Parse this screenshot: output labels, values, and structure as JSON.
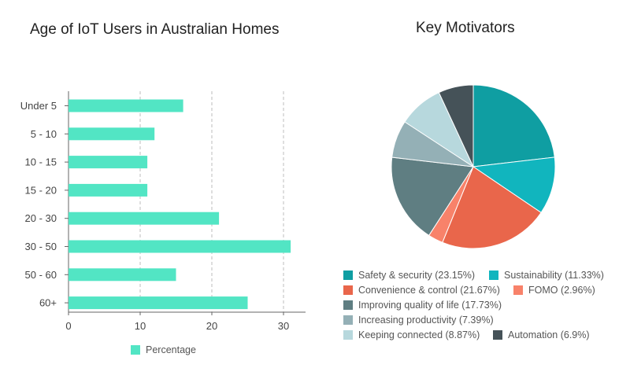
{
  "chart_data": [
    {
      "type": "bar",
      "orientation": "horizontal",
      "title": "Age of IoT Users in Australian Homes",
      "categories": [
        "Under 5",
        "5 - 10",
        "10 - 15",
        "15 - 20",
        "20 - 30",
        "30 - 50",
        "50 - 60",
        "60+"
      ],
      "series": [
        {
          "name": "Percentage",
          "values": [
            16,
            12,
            11,
            11,
            21,
            31,
            15,
            25
          ],
          "color": "#52e5c4"
        }
      ],
      "xlim": [
        0,
        33
      ],
      "xticks": [
        "0",
        "10",
        "20",
        "30"
      ],
      "xlabel": "",
      "ylabel": "",
      "grid": "vertical dashed",
      "legend": "bottom"
    },
    {
      "type": "pie",
      "title": "Key Motivators",
      "slices": [
        {
          "label": "Safety & security (23.15%)",
          "value": 23.15,
          "color": "#0f9ea2"
        },
        {
          "label": "Sustainability (11.33%)",
          "value": 11.33,
          "color": "#11b5be"
        },
        {
          "label": "Convenience & control (21.67%)",
          "value": 21.67,
          "color": "#e9664b"
        },
        {
          "label": "FOMO (2.96%)",
          "value": 2.96,
          "color": "#f8826a"
        },
        {
          "label": "Improving quality of life (17.73%)",
          "value": 17.73,
          "color": "#5f7e82"
        },
        {
          "label": "Increasing productivity (7.39%)",
          "value": 7.39,
          "color": "#94b0b6"
        },
        {
          "label": "Keeping connected (8.87%)",
          "value": 8.87,
          "color": "#b7d8dd"
        },
        {
          "label": "Automation (6.9%)",
          "value": 6.9,
          "color": "#455258"
        }
      ],
      "legend": "bottom"
    }
  ]
}
